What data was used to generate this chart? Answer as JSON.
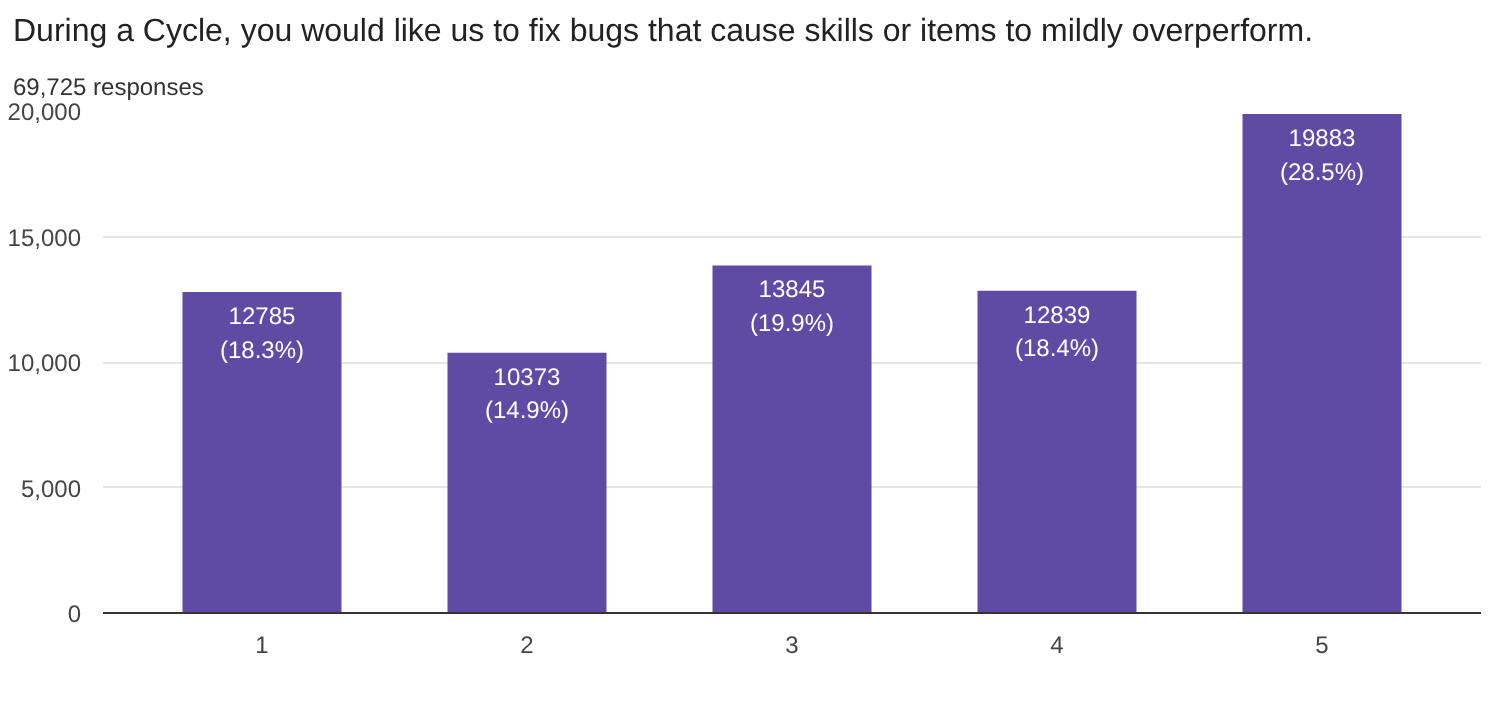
{
  "chart_data": {
    "type": "bar",
    "title": "During a Cycle, you would like us to fix bugs that cause skills or items to mildly overperform.",
    "subtitle": "69,725 responses",
    "categories": [
      "1",
      "2",
      "3",
      "4",
      "5"
    ],
    "values": [
      12785,
      10373,
      13845,
      12839,
      19883
    ],
    "value_labels": [
      "12785\n(18.3%)",
      "10373\n(14.9%)",
      "13845\n(19.9%)",
      "12839\n(18.4%)",
      "19883\n(28.5%)"
    ],
    "color": "#5f4ba3",
    "ylim": [
      0,
      20000
    ],
    "yticks": [
      0,
      {
        "value": 5000,
        "label": "5,000"
      },
      {
        "value": 10000,
        "label": "10,000"
      },
      {
        "value": 15000,
        "label": "15,000"
      },
      {
        "value": 20000,
        "label": "20,000"
      }
    ],
    "grid": "y"
  }
}
